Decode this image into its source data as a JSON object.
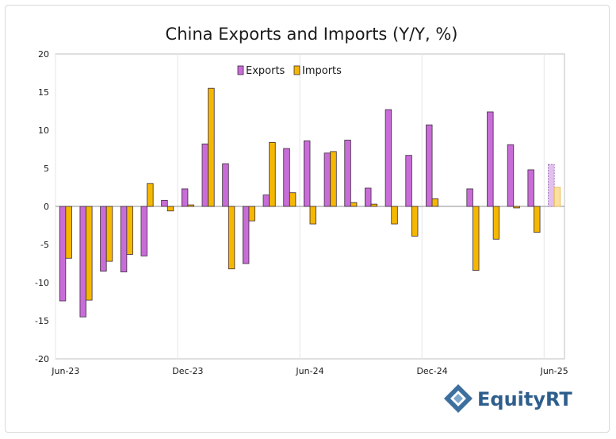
{
  "chart_data": {
    "type": "bar",
    "title": "China Exports and Imports (Y/Y, %)",
    "xlabel": "",
    "ylabel": "",
    "ylim": [
      -20,
      20
    ],
    "yticks": [
      20,
      15,
      10,
      5,
      0,
      -5,
      -10,
      -15,
      -20
    ],
    "x_tick_labels": [
      "Jun-23",
      "Dec-23",
      "Jun-24",
      "Dec-24",
      "Jun-25"
    ],
    "x_tick_indices": [
      0,
      6,
      12,
      18,
      24
    ],
    "grid": "vertical",
    "legend": "top-center",
    "categories": [
      "Jun-23",
      "Jul-23",
      "Aug-23",
      "Sep-23",
      "Oct-23",
      "Nov-23",
      "Dec-23",
      "Jan-24",
      "Feb-24",
      "Mar-24",
      "Apr-24",
      "May-24",
      "Jun-24",
      "Jul-24",
      "Aug-24",
      "Sep-24",
      "Oct-24",
      "Nov-24",
      "Dec-24",
      "Jan-25",
      "Feb-25",
      "Mar-25",
      "Apr-25",
      "May-25",
      "Jun-25"
    ],
    "series": [
      {
        "name": "Exports",
        "color": "#c86dd7",
        "values": [
          -12.4,
          -14.5,
          -8.5,
          -8.6,
          -6.5,
          0.8,
          2.3,
          8.2,
          5.6,
          -7.5,
          1.5,
          7.6,
          8.6,
          7.0,
          8.7,
          2.4,
          12.7,
          6.7,
          10.7,
          null,
          2.3,
          12.4,
          8.1,
          4.8,
          5.5
        ]
      },
      {
        "name": "Imports",
        "color": "#f5b800",
        "values": [
          -6.8,
          -12.3,
          -7.2,
          -6.3,
          3.0,
          -0.6,
          0.2,
          15.5,
          -8.2,
          -1.9,
          8.4,
          1.8,
          -2.3,
          7.2,
          0.5,
          0.3,
          -2.3,
          -3.9,
          1.0,
          null,
          -8.4,
          -4.3,
          -0.2,
          -3.4,
          2.5
        ]
      }
    ],
    "estimated_last_point": "Jun-25"
  },
  "logo": {
    "text": "EquityRT"
  }
}
